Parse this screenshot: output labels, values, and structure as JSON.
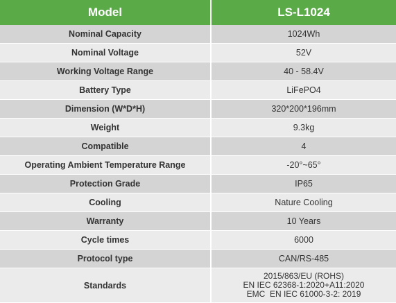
{
  "header": {
    "model_label": "Model",
    "model_value": "LS-L1024"
  },
  "rows": [
    {
      "label": "Nominal Capacity",
      "value": "1024Wh"
    },
    {
      "label": "Nominal Voltage",
      "value": "52V"
    },
    {
      "label": "Working Voltage Range",
      "value": "40 - 58.4V"
    },
    {
      "label": "Battery Type",
      "value": "LiFePO4"
    },
    {
      "label": "Dimension (W*D*H)",
      "value": "320*200*196mm"
    },
    {
      "label": "Weight",
      "value": "9.3kg"
    },
    {
      "label": "Compatible",
      "value": "4"
    },
    {
      "label": "Operating Ambient Temperature Range",
      "value": "-20°~65°"
    },
    {
      "label": "Protection Grade",
      "value": "IP65"
    },
    {
      "label": "Cooling",
      "value": "Nature Cooling"
    },
    {
      "label": "Warranty",
      "value": "10 Years"
    },
    {
      "label": "Cycle times",
      "value": "6000"
    },
    {
      "label": "Protocol type",
      "value": "CAN/RS-485"
    }
  ],
  "standards": {
    "label": "Standards",
    "lines": [
      "2015/863/EU (ROHS)",
      "EN IEC 62368-1:2020+A11:2020",
      "EMC  EN IEC 61000-3-2: 2019"
    ]
  }
}
